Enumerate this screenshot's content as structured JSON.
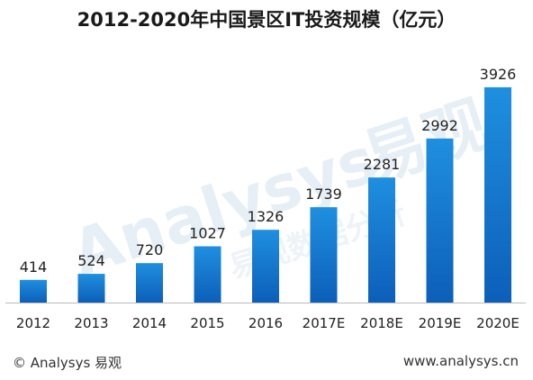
{
  "chart_data": {
    "type": "bar",
    "title": "2012-2020年中国景区IT投资规模（亿元）",
    "categories": [
      "2012",
      "2013",
      "2014",
      "2015",
      "2016",
      "2017E",
      "2018E",
      "2019E",
      "2020E"
    ],
    "values": [
      414,
      524,
      720,
      1027,
      1326,
      1739,
      2281,
      2992,
      3926
    ],
    "ylim": [
      0,
      4000
    ],
    "grid": false,
    "legend": "none",
    "bar_color_top": "#1f8fe0",
    "bar_color_bottom": "#0c5fb8",
    "axis_color": "#bbbbbb"
  },
  "footer": {
    "left": "© Analysys 易观",
    "right": "www.analysys.cn"
  },
  "watermark": {
    "brand": "Analysys",
    "brand_cn": "易观",
    "subtitle_cn": "易观数据分析"
  }
}
